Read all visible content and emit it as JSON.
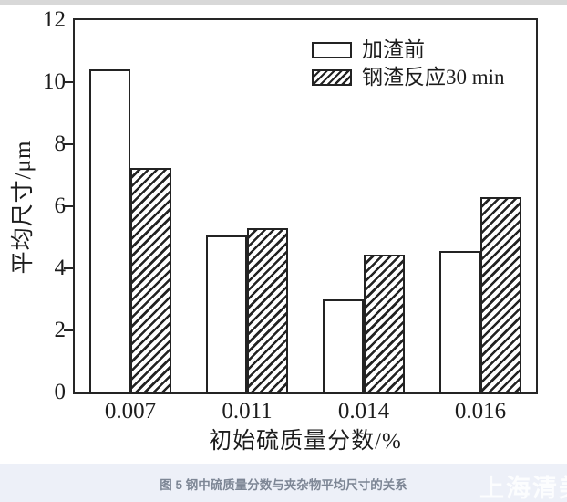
{
  "page": {
    "background": "#ffffff",
    "top_band_color": "#d8d8d8"
  },
  "chart_data": {
    "type": "bar",
    "categories": [
      "0.007",
      "0.011",
      "0.014",
      "0.016"
    ],
    "series": [
      {
        "name": "加渣前",
        "fill": "plain",
        "values": [
          10.4,
          5.05,
          3.0,
          4.55
        ]
      },
      {
        "name": "钢渣反应30 min",
        "fill": "hatched",
        "values": [
          7.25,
          5.3,
          4.45,
          6.3
        ]
      }
    ],
    "title": "",
    "xlabel": "初始硫质量分数/%",
    "ylabel": "平均尺寸/μm",
    "ylim": [
      0,
      12
    ],
    "yticks": [
      0,
      2,
      4,
      6,
      8,
      10,
      12
    ],
    "grid": false,
    "legend_position": "top-right",
    "line_color": "#262626"
  },
  "caption": {
    "text": "图 5 钢中硫质量分数与夹杂物平均尺寸的关系",
    "color": "#7d8695",
    "background": "#edf0f8"
  },
  "watermark": {
    "text": "上海清美",
    "color": "#ffffff"
  }
}
